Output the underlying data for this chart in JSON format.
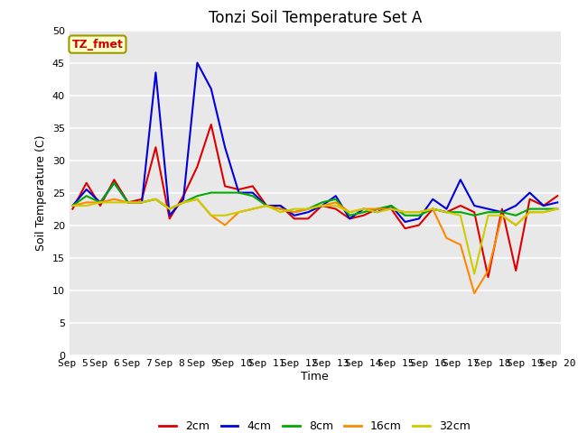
{
  "title": "Tonzi Soil Temperature Set A",
  "xlabel": "Time",
  "ylabel": "Soil Temperature (C)",
  "annotation": "TZ_fmet",
  "ylim": [
    0,
    50
  ],
  "yticks": [
    0,
    5,
    10,
    15,
    20,
    25,
    30,
    35,
    40,
    45,
    50
  ],
  "x_labels": [
    "Sep 5",
    "Sep 6",
    "Sep 7",
    "Sep 8",
    "Sep 9",
    "Sep 10",
    "Sep 11",
    "Sep 12",
    "Sep 13",
    "Sep 14",
    "Sep 15",
    "Sep 16",
    "Sep 17",
    "Sep 18",
    "Sep 19",
    "Sep 20"
  ],
  "n_days": 16,
  "series": {
    "2cm": {
      "color": "#dd0000",
      "data": [
        22.5,
        26.5,
        23.0,
        27.0,
        23.5,
        24.0,
        32.0,
        21.0,
        24.5,
        29.0,
        35.5,
        26.0,
        25.5,
        26.0,
        23.0,
        23.0,
        21.0,
        21.0,
        23.0,
        22.5,
        21.0,
        21.5,
        22.5,
        22.5,
        19.5,
        20.0,
        22.5,
        22.0,
        23.0,
        22.0,
        12.0,
        22.5,
        13.0,
        24.0,
        23.0,
        24.5
      ]
    },
    "4cm": {
      "color": "#0000dd",
      "data": [
        23.0,
        25.5,
        23.5,
        26.5,
        23.5,
        23.5,
        43.5,
        21.5,
        24.0,
        45.0,
        41.0,
        32.0,
        25.0,
        25.0,
        23.0,
        23.0,
        21.5,
        22.0,
        23.0,
        24.5,
        21.0,
        22.5,
        22.0,
        23.0,
        20.5,
        21.0,
        24.0,
        22.5,
        27.0,
        23.0,
        22.5,
        22.0,
        23.0,
        25.0,
        23.0,
        23.5
      ]
    },
    "8cm": {
      "color": "#00aa00",
      "data": [
        23.0,
        24.5,
        23.5,
        26.5,
        23.5,
        23.5,
        24.0,
        22.5,
        23.5,
        24.5,
        25.0,
        25.0,
        25.0,
        24.5,
        23.0,
        22.5,
        22.0,
        22.5,
        23.5,
        24.0,
        21.5,
        22.0,
        22.5,
        23.0,
        21.5,
        21.5,
        22.5,
        22.0,
        22.0,
        21.5,
        22.0,
        22.0,
        21.5,
        22.5,
        22.5,
        22.5
      ]
    },
    "16cm": {
      "color": "#ff8800",
      "data": [
        23.0,
        23.5,
        23.5,
        24.0,
        23.5,
        23.5,
        24.0,
        22.5,
        23.5,
        24.0,
        21.5,
        20.0,
        22.0,
        22.5,
        23.0,
        22.5,
        22.0,
        22.5,
        23.0,
        23.5,
        22.0,
        22.5,
        22.5,
        22.5,
        22.0,
        22.0,
        22.5,
        18.0,
        17.0,
        9.5,
        13.0,
        21.5,
        20.0,
        22.0,
        22.0,
        22.5
      ]
    },
    "32cm": {
      "color": "#cccc00",
      "data": [
        23.0,
        23.0,
        23.5,
        23.5,
        23.5,
        23.5,
        24.0,
        22.5,
        23.5,
        24.0,
        21.5,
        21.5,
        22.0,
        22.5,
        23.0,
        22.0,
        22.5,
        22.5,
        23.0,
        23.0,
        22.0,
        22.5,
        22.0,
        22.5,
        22.0,
        22.0,
        22.5,
        22.0,
        21.5,
        12.5,
        21.5,
        21.5,
        20.0,
        22.0,
        22.0,
        22.5
      ]
    }
  },
  "plot_bg_color": "#e8e8e8",
  "grid_color": "#ffffff",
  "fig_bg_color": "#ffffff",
  "annotation_bg": "#ffffcc",
  "annotation_border": "#999900",
  "annotation_color": "#cc0000",
  "title_fontsize": 12,
  "axis_label_fontsize": 9,
  "tick_fontsize": 8,
  "legend_fontsize": 9,
  "linewidth": 1.5
}
